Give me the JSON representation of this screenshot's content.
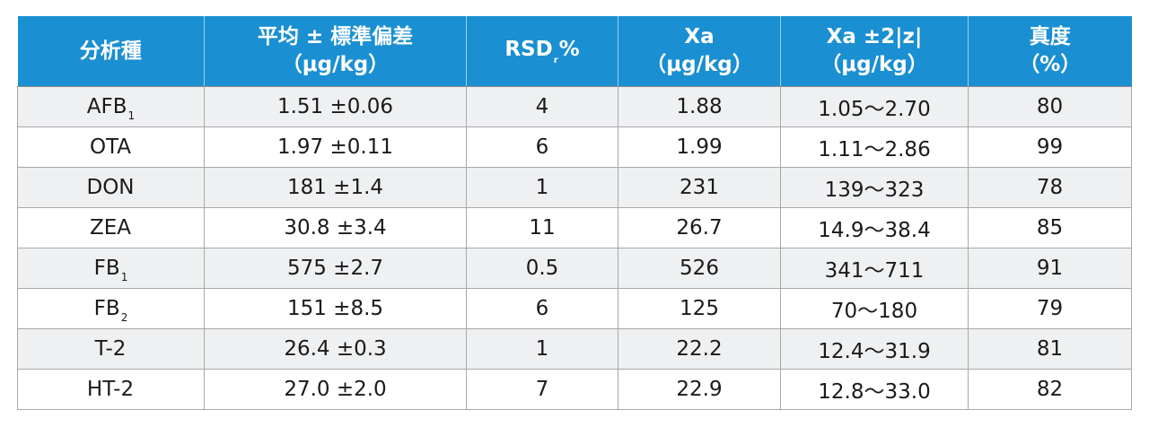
{
  "table": {
    "headers": [
      {
        "line1": "分析種",
        "line2": ""
      },
      {
        "line1": "平均 ± 標準偏差",
        "line2": "（μg/kg）"
      },
      {
        "line1": "RSD",
        "sub": "r",
        "line1_suffix": "%",
        "line2": ""
      },
      {
        "line1": "Xa",
        "line2": "（μg/kg）"
      },
      {
        "line1": "Xa ±2|z|",
        "line2": "（μg/kg）"
      },
      {
        "line1": "真度",
        "line2": "（%）"
      }
    ],
    "rows": [
      {
        "analyte": "AFB",
        "sub": "1",
        "mean_sd": "1.51 ±0.06",
        "rsd": "4",
        "xa": "1.88",
        "range": "1.05～2.70",
        "trueness": "80"
      },
      {
        "analyte": "OTA",
        "sub": "",
        "mean_sd": "1.97 ±0.11",
        "rsd": "6",
        "xa": "1.99",
        "range": "1.11～2.86",
        "trueness": "99"
      },
      {
        "analyte": "DON",
        "sub": "",
        "mean_sd": "181 ±1.4",
        "rsd": "1",
        "xa": "231",
        "range": "139～323",
        "trueness": "78"
      },
      {
        "analyte": "ZEA",
        "sub": "",
        "mean_sd": "30.8 ±3.4",
        "rsd": "11",
        "xa": "26.7",
        "range": "14.9～38.4",
        "trueness": "85"
      },
      {
        "analyte": "FB",
        "sub": "1",
        "mean_sd": "575 ±2.7",
        "rsd": "0.5",
        "xa": "526",
        "range": "341～711",
        "trueness": "91"
      },
      {
        "analyte": "FB",
        "sub": "2",
        "mean_sd": "151 ±8.5",
        "rsd": "6",
        "xa": "125",
        "range": "70～180",
        "trueness": "79"
      },
      {
        "analyte": "T-2",
        "sub": "",
        "mean_sd": "26.4 ±0.3",
        "rsd": "1",
        "xa": "22.2",
        "range": "12.4～31.9",
        "trueness": "81"
      },
      {
        "analyte": "HT-2",
        "sub": "",
        "mean_sd": "27.0 ±2.0",
        "rsd": "7",
        "xa": "22.9",
        "range": "12.8～33.0",
        "trueness": "82"
      }
    ]
  },
  "colors": {
    "header_bg": "#1a8fd2",
    "header_text": "#ffffff",
    "row_alt_bg": "#eef0f2",
    "border": "#a8a8a8"
  }
}
